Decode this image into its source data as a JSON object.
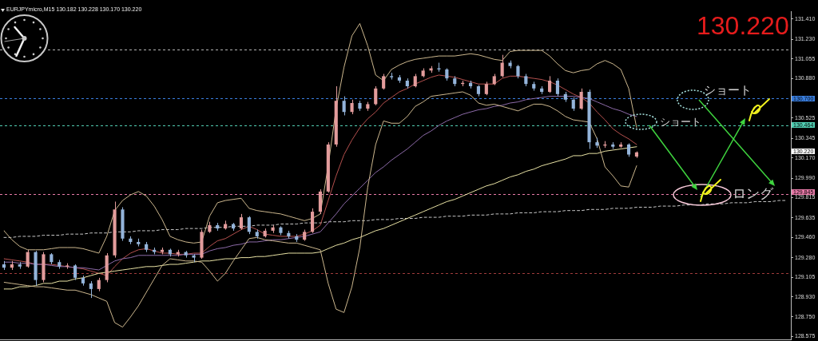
{
  "chart_data": {
    "type": "candlestick",
    "title": "EURJPYmicro,M15 130.182 130.228 130.170 130.220",
    "categories": [
      null,
      null,
      null,
      null,
      null,
      null,
      null,
      null,
      null,
      null,
      null,
      null,
      null,
      null,
      null,
      null,
      null,
      null,
      null,
      null,
      null,
      null,
      null,
      null,
      null,
      null,
      null,
      null,
      null,
      null,
      null,
      null,
      null,
      null,
      null,
      null,
      null,
      null,
      null,
      null,
      null,
      null,
      null,
      null,
      null,
      null,
      null,
      null,
      null,
      null,
      null,
      null,
      null,
      null,
      null,
      null,
      null,
      null,
      null,
      null,
      null,
      null,
      null,
      null,
      null,
      null,
      null,
      null,
      null,
      null,
      null,
      null,
      null,
      null,
      null,
      null,
      null,
      null,
      null,
      null,
      null,
      null,
      null,
      null,
      null,
      null,
      null,
      null,
      null,
      null,
      null,
      null,
      null,
      null,
      null,
      null,
      null,
      null,
      null,
      null
    ],
    "ohlc": [
      [
        129.22,
        129.25,
        129.17,
        129.19
      ],
      [
        129.19,
        129.25,
        129.17,
        129.22
      ],
      [
        129.22,
        129.24,
        129.18,
        129.2
      ],
      [
        129.2,
        129.35,
        129.19,
        129.33
      ],
      [
        129.33,
        129.34,
        129.03,
        129.08
      ],
      [
        129.08,
        129.33,
        129.06,
        129.31
      ],
      [
        129.31,
        129.32,
        129.22,
        129.24
      ],
      [
        129.24,
        129.26,
        129.18,
        129.2
      ],
      [
        129.2,
        129.23,
        129.18,
        129.21
      ],
      [
        129.21,
        129.22,
        129.08,
        129.1
      ],
      [
        129.1,
        129.12,
        129.03,
        129.05
      ],
      [
        129.05,
        129.07,
        128.92,
        129.0
      ],
      [
        129.0,
        129.1,
        128.98,
        129.08
      ],
      [
        129.08,
        129.32,
        129.06,
        129.3
      ],
      [
        129.3,
        129.78,
        129.28,
        129.71
      ],
      [
        129.71,
        129.73,
        129.43,
        129.45
      ],
      [
        129.45,
        129.47,
        129.4,
        129.42
      ],
      [
        129.42,
        129.45,
        129.38,
        129.4
      ],
      [
        129.4,
        129.42,
        129.33,
        129.35
      ],
      [
        129.35,
        129.37,
        129.31,
        129.33
      ],
      [
        129.33,
        129.37,
        129.31,
        129.35
      ],
      [
        129.35,
        129.36,
        129.29,
        129.31
      ],
      [
        129.31,
        129.35,
        129.29,
        129.33
      ],
      [
        129.33,
        129.34,
        129.28,
        129.3
      ],
      [
        129.3,
        129.31,
        129.24,
        129.28
      ],
      [
        129.28,
        129.53,
        129.27,
        129.51
      ],
      [
        129.51,
        129.6,
        129.5,
        129.57
      ],
      [
        129.57,
        129.59,
        129.52,
        129.54
      ],
      [
        129.54,
        129.61,
        129.53,
        129.58
      ],
      [
        129.58,
        129.59,
        129.52,
        129.54
      ],
      [
        129.54,
        129.67,
        129.53,
        129.64
      ],
      [
        129.64,
        129.65,
        129.49,
        129.51
      ],
      [
        129.51,
        129.53,
        129.45,
        129.47
      ],
      [
        129.47,
        129.54,
        129.46,
        129.52
      ],
      [
        129.52,
        129.57,
        129.5,
        129.55
      ],
      [
        129.55,
        129.56,
        129.48,
        129.5
      ],
      [
        129.5,
        129.52,
        129.45,
        129.47
      ],
      [
        129.47,
        129.49,
        129.42,
        129.44
      ],
      [
        129.44,
        129.53,
        129.43,
        129.51
      ],
      [
        129.51,
        129.72,
        129.5,
        129.69
      ],
      [
        129.69,
        129.89,
        129.67,
        129.87
      ],
      [
        129.87,
        130.31,
        129.86,
        130.29
      ],
      [
        130.29,
        130.81,
        130.27,
        130.68
      ],
      [
        130.68,
        130.72,
        130.55,
        130.58
      ],
      [
        130.58,
        130.69,
        130.56,
        130.66
      ],
      [
        130.66,
        130.68,
        130.59,
        130.61
      ],
      [
        130.61,
        130.67,
        130.59,
        130.65
      ],
      [
        130.65,
        130.81,
        130.64,
        130.79
      ],
      [
        130.79,
        130.92,
        130.78,
        130.9
      ],
      [
        130.9,
        130.93,
        130.87,
        130.89
      ],
      [
        130.89,
        130.91,
        130.84,
        130.86
      ],
      [
        130.86,
        130.88,
        130.79,
        130.81
      ],
      [
        130.81,
        130.92,
        130.8,
        130.9
      ],
      [
        130.9,
        130.97,
        130.89,
        130.95
      ],
      [
        130.95,
        130.99,
        130.93,
        130.97
      ],
      [
        130.97,
        131.02,
        130.94,
        130.96
      ],
      [
        130.96,
        130.97,
        130.86,
        130.88
      ],
      [
        130.88,
        130.9,
        130.81,
        130.83
      ],
      [
        130.83,
        130.86,
        130.81,
        130.84
      ],
      [
        130.84,
        130.86,
        130.79,
        130.81
      ],
      [
        130.81,
        130.82,
        130.72,
        130.74
      ],
      [
        130.74,
        130.85,
        130.73,
        130.83
      ],
      [
        130.83,
        130.92,
        130.82,
        130.9
      ],
      [
        130.9,
        131.09,
        130.89,
        131.02
      ],
      [
        131.02,
        131.04,
        130.97,
        130.99
      ],
      [
        130.99,
        131.0,
        130.88,
        130.9
      ],
      [
        130.9,
        130.92,
        130.81,
        130.83
      ],
      [
        130.83,
        130.85,
        130.77,
        130.79
      ],
      [
        130.79,
        130.81,
        130.74,
        130.76
      ],
      [
        130.76,
        130.9,
        130.75,
        130.86
      ],
      [
        130.86,
        130.88,
        130.72,
        130.74
      ],
      [
        130.74,
        130.76,
        130.67,
        130.69
      ],
      [
        130.69,
        130.71,
        130.59,
        130.61
      ],
      [
        130.61,
        130.79,
        130.6,
        130.76
      ],
      [
        130.76,
        130.78,
        130.25,
        130.31
      ],
      [
        130.31,
        130.35,
        130.26,
        130.28
      ],
      [
        130.28,
        130.32,
        130.26,
        130.29
      ],
      [
        130.29,
        130.31,
        130.25,
        130.27
      ],
      [
        130.27,
        130.31,
        130.26,
        130.29
      ],
      [
        130.29,
        130.3,
        130.18,
        130.2
      ],
      [
        130.182,
        130.228,
        130.17,
        130.22
      ],
      null,
      null,
      null,
      null,
      null,
      null,
      null,
      null,
      null,
      null,
      null,
      null,
      null,
      null,
      null,
      null,
      null,
      null,
      null
    ],
    "colors": [
      "#94b4da",
      "#e39c9c",
      "#94b4da",
      "#e39c9c",
      "#94b4da",
      "#e39c9c",
      "#94b4da",
      "#94b4da",
      "#e39c9c",
      "#94b4da",
      "#94b4da",
      "#94b4da",
      "#e39c9c",
      "#e39c9c",
      "#e39c9c",
      "#94b4da",
      "#94b4da",
      "#94b4da",
      "#94b4da",
      "#94b4da",
      "#e39c9c",
      "#94b4da",
      "#e39c9c",
      "#94b4da",
      "#94b4da",
      "#e39c9c",
      "#e39c9c",
      "#94b4da",
      "#e39c9c",
      "#94b4da",
      "#e39c9c",
      "#94b4da",
      "#94b4da",
      "#e39c9c",
      "#e39c9c",
      "#94b4da",
      "#94b4da",
      "#94b4da",
      "#e39c9c",
      "#e39c9c",
      "#e39c9c",
      "#e39c9c",
      "#e39c9c",
      "#94b4da",
      "#e39c9c",
      "#94b4da",
      "#e39c9c",
      "#e39c9c",
      "#e39c9c",
      "#94b4da",
      "#94b4da",
      "#94b4da",
      "#e39c9c",
      "#e39c9c",
      "#e39c9c",
      "#94b4da",
      "#94b4da",
      "#94b4da",
      "#e39c9c",
      "#94b4da",
      "#94b4da",
      "#e39c9c",
      "#e39c9c",
      "#e39c9c",
      "#94b4da",
      "#94b4da",
      "#94b4da",
      "#94b4da",
      "#94b4da",
      "#e39c9c",
      "#94b4da",
      "#94b4da",
      "#94b4da",
      "#e39c9c",
      "#94b4da",
      "#94b4da",
      "#e39c9c",
      "#94b4da",
      "#e39c9c",
      "#94b4da",
      "#e39c9c",
      null,
      null,
      null,
      null,
      null,
      null,
      null,
      null,
      null,
      null,
      null,
      null,
      null,
      null,
      null,
      null,
      null,
      null,
      null
    ],
    "series": [
      {
        "type": "line",
        "color": "#ccb78e",
        "values": [
          129.52,
          129.44,
          129.38,
          129.35,
          129.35,
          129.35,
          129.36,
          129.37,
          129.37,
          129.37,
          129.36,
          129.34,
          129.32,
          129.47,
          129.7,
          129.79,
          129.84,
          129.87,
          129.83,
          129.74,
          129.62,
          129.47,
          129.44,
          129.42,
          129.41,
          129.42,
          129.65,
          129.77,
          129.79,
          129.8,
          129.81,
          129.72,
          129.7,
          129.69,
          129.68,
          129.67,
          129.65,
          129.63,
          129.61,
          129.63,
          129.67,
          130.1,
          130.61,
          130.98,
          131.26,
          131.37,
          131.17,
          130.91,
          130.86,
          130.96,
          131.0,
          131.03,
          131.05,
          131.06,
          131.07,
          131.08,
          131.08,
          131.08,
          131.09,
          131.1,
          131.09,
          131.07,
          131.05,
          131.04,
          131.12,
          131.13,
          131.13,
          131.13,
          131.13,
          131.08,
          131.01,
          130.95,
          130.93,
          130.95,
          130.96,
          131.01,
          131.04,
          131.01,
          130.96,
          130.79,
          130.44,
          null,
          null,
          null,
          null,
          null,
          null,
          null,
          null,
          null,
          null,
          null,
          null,
          null,
          null,
          null,
          null,
          null,
          null,
          null
        ]
      },
      {
        "type": "line",
        "color": "#ccb78e",
        "values": [
          129.06,
          129.05,
          129.04,
          129.03,
          129.02,
          129.02,
          129.01,
          129.0,
          128.99,
          128.99,
          128.97,
          128.95,
          128.92,
          128.89,
          128.7,
          128.66,
          128.75,
          128.85,
          128.97,
          129.09,
          129.21,
          129.27,
          129.26,
          129.25,
          129.25,
          129.24,
          129.16,
          129.07,
          129.14,
          129.25,
          129.35,
          129.45,
          129.46,
          129.44,
          129.43,
          129.42,
          129.41,
          129.41,
          129.39,
          129.37,
          129.35,
          129.05,
          128.82,
          128.79,
          129.02,
          129.37,
          129.91,
          130.29,
          130.5,
          130.48,
          130.48,
          130.54,
          130.63,
          130.67,
          130.72,
          130.73,
          130.74,
          130.75,
          130.76,
          130.73,
          130.66,
          130.64,
          130.65,
          130.63,
          130.61,
          130.59,
          130.62,
          130.65,
          130.65,
          130.63,
          130.59,
          130.54,
          130.51,
          130.5,
          130.49,
          130.34,
          130.09,
          130.01,
          129.92,
          129.91,
          130.1,
          null,
          null,
          null,
          null,
          null,
          null,
          null,
          null,
          null,
          null,
          null,
          null,
          null,
          null,
          null,
          null,
          null,
          null,
          null
        ]
      },
      {
        "type": "line",
        "color": "#e8e2a4",
        "values": [
          129.0,
          129.0,
          129.02,
          129.02,
          129.03,
          129.05,
          129.05,
          129.07,
          129.07,
          129.09,
          129.1,
          129.12,
          129.14,
          129.15,
          129.16,
          129.17,
          129.18,
          129.19,
          129.2,
          129.2,
          129.21,
          129.22,
          129.22,
          129.23,
          129.24,
          129.25,
          129.25,
          129.26,
          129.27,
          129.27,
          129.28,
          129.28,
          129.29,
          129.29,
          129.3,
          129.31,
          129.32,
          129.32,
          129.32,
          129.32,
          129.33,
          129.36,
          129.39,
          129.41,
          129.44,
          129.46,
          129.49,
          129.52,
          129.54,
          129.57,
          129.6,
          129.63,
          129.66,
          129.69,
          129.72,
          129.75,
          129.78,
          129.8,
          129.83,
          129.86,
          129.89,
          129.92,
          129.94,
          129.97,
          130.0,
          130.02,
          130.05,
          130.07,
          130.1,
          130.12,
          130.14,
          130.16,
          130.19,
          130.19,
          130.21,
          130.21,
          130.23,
          130.24,
          130.25,
          130.26,
          130.27,
          null,
          null,
          null,
          null,
          null,
          null,
          null,
          null,
          null,
          null,
          null,
          null,
          null,
          null,
          null,
          null,
          null,
          null,
          null
        ]
      },
      {
        "type": "line",
        "color": "#8c6aa8",
        "values": [
          129.24,
          129.24,
          129.23,
          129.23,
          129.22,
          129.22,
          129.21,
          129.2,
          129.2,
          129.19,
          129.19,
          129.18,
          129.17,
          129.21,
          129.25,
          129.27,
          129.28,
          129.3,
          129.3,
          129.3,
          129.3,
          129.3,
          129.3,
          129.31,
          129.31,
          129.31,
          129.34,
          129.36,
          129.37,
          129.39,
          129.4,
          129.42,
          129.42,
          129.43,
          129.44,
          129.44,
          129.45,
          129.46,
          129.47,
          129.49,
          129.51,
          129.59,
          129.67,
          129.76,
          129.83,
          129.9,
          129.97,
          130.04,
          130.09,
          130.15,
          130.2,
          130.25,
          130.31,
          130.37,
          130.41,
          130.46,
          130.5,
          130.53,
          130.56,
          130.58,
          130.6,
          130.61,
          130.63,
          130.64,
          130.66,
          130.67,
          130.69,
          130.7,
          130.71,
          130.72,
          130.72,
          130.72,
          130.72,
          130.71,
          130.7,
          130.67,
          130.64,
          130.61,
          130.59,
          130.56,
          130.54,
          null,
          null,
          null,
          null,
          null,
          null,
          null,
          null,
          null,
          null,
          null,
          null,
          null,
          null,
          null,
          null,
          null,
          null,
          null
        ]
      },
      {
        "type": "line",
        "color": "#b4504e",
        "values": [
          129.27,
          129.26,
          129.25,
          129.24,
          129.22,
          129.22,
          129.22,
          129.21,
          129.2,
          129.19,
          129.18,
          129.16,
          129.14,
          129.12,
          129.2,
          129.27,
          129.32,
          129.35,
          129.36,
          129.34,
          129.32,
          129.32,
          129.31,
          129.31,
          129.32,
          129.32,
          129.38,
          129.43,
          129.45,
          129.49,
          129.53,
          129.56,
          129.53,
          129.49,
          129.48,
          129.47,
          129.47,
          129.47,
          129.49,
          129.52,
          129.57,
          129.79,
          130.01,
          130.2,
          130.33,
          130.44,
          130.52,
          130.58,
          130.66,
          130.71,
          130.76,
          130.79,
          130.83,
          130.86,
          130.89,
          130.91,
          130.9,
          130.89,
          130.87,
          130.85,
          130.83,
          130.83,
          130.83,
          130.88,
          130.9,
          130.9,
          130.89,
          130.88,
          130.87,
          130.85,
          130.82,
          130.78,
          130.74,
          130.71,
          130.66,
          130.58,
          130.51,
          130.43,
          130.38,
          130.34,
          130.29,
          null,
          null,
          null,
          null,
          null,
          null,
          null,
          null,
          null,
          null,
          null,
          null,
          null,
          null,
          null,
          null,
          null,
          null,
          null
        ]
      },
      {
        "type": "line",
        "color": "#c8c8c8",
        "line_style": "dashed",
        "values": [
          129.46,
          129.46,
          129.47,
          129.47,
          129.47,
          129.48,
          129.48,
          129.48,
          129.49,
          129.49,
          129.49,
          129.5,
          129.5,
          129.5,
          129.51,
          129.51,
          129.51,
          129.52,
          129.52,
          129.52,
          129.53,
          129.53,
          129.53,
          129.54,
          129.54,
          129.54,
          129.55,
          129.55,
          129.55,
          129.56,
          129.56,
          129.56,
          129.57,
          129.57,
          129.57,
          129.58,
          129.58,
          129.58,
          129.59,
          129.59,
          129.59,
          129.6,
          129.6,
          129.6,
          129.61,
          129.61,
          129.61,
          129.62,
          129.62,
          129.62,
          129.63,
          129.63,
          129.63,
          129.64,
          129.64,
          129.64,
          129.65,
          129.65,
          129.65,
          129.66,
          129.66,
          129.66,
          129.67,
          129.67,
          129.67,
          129.68,
          129.68,
          129.68,
          129.69,
          129.69,
          129.69,
          129.7,
          129.7,
          129.7,
          129.71,
          129.71,
          129.71,
          129.72,
          129.72,
          129.72,
          129.73,
          129.73,
          129.73,
          129.74,
          129.74,
          129.74,
          129.75,
          129.75,
          129.75,
          129.76,
          129.76,
          129.76,
          129.77,
          129.77,
          129.77,
          129.78,
          129.78,
          129.78,
          129.79,
          129.79
        ]
      }
    ],
    "ylim": [
      128.55,
      131.48
    ],
    "yticks": [
      {
        "value": 131.41,
        "label": "131.410"
      },
      {
        "value": 131.23,
        "label": "131.230"
      },
      {
        "value": 131.055,
        "label": "131.055"
      },
      {
        "value": 130.88,
        "label": "130.880"
      },
      {
        "value": 130.525,
        "label": "130.525"
      },
      {
        "value": 130.345,
        "label": "130.345"
      },
      {
        "value": 130.17,
        "label": "130.170"
      },
      {
        "value": 129.99,
        "label": "129.990"
      },
      {
        "value": 129.815,
        "label": "129.815"
      },
      {
        "value": 129.635,
        "label": "129.635"
      },
      {
        "value": 129.46,
        "label": "129.460"
      },
      {
        "value": 129.28,
        "label": "129.280"
      },
      {
        "value": 129.105,
        "label": "129.105"
      },
      {
        "value": 128.93,
        "label": "128.930"
      },
      {
        "value": 128.75,
        "label": "128.750"
      },
      {
        "value": 128.575,
        "label": "128.575"
      }
    ],
    "ref_lines": [
      {
        "axis": "y",
        "value": 131.14,
        "color": "#b4b4b4",
        "line_style": "dashed"
      },
      {
        "axis": "y",
        "value": 130.7,
        "label": "130.700",
        "color": "#3a7fe0",
        "line_style": "dashed"
      },
      {
        "axis": "y",
        "value": 130.464,
        "label": "130.464",
        "color": "#52d0b4",
        "line_style": "dashed"
      },
      {
        "axis": "y",
        "value": 129.845,
        "label": "129.845",
        "color": "#e87aa8",
        "line_style": "dashed"
      },
      {
        "axis": "y",
        "value": 129.14,
        "color": "#a03c3c",
        "line_style": "dashed"
      }
    ],
    "annotations": [
      "130.220",
      "ショート",
      "ショート",
      "ロング",
      "130.220"
    ],
    "grid": false,
    "legend": false,
    "marker": "none",
    "tick_labels": "y"
  }
}
